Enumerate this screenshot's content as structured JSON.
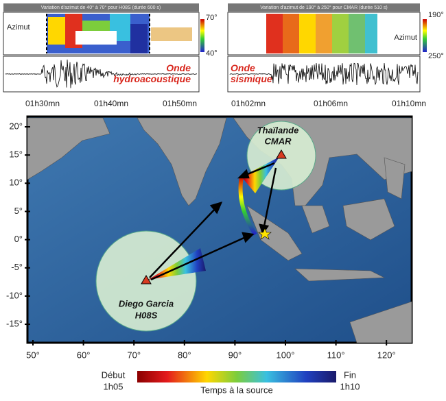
{
  "left_panel": {
    "header": "Variation d'azimut de 40° à 70° pour H08S (durée 600 s)",
    "axis_label": "Azimut",
    "scale_top": "70°",
    "scale_bottom": "40°",
    "wave": "Onde hydroacoustique",
    "times": [
      "01h30mn",
      "01h40mn",
      "01h50mn"
    ]
  },
  "right_panel": {
    "header": "Variation d'azimut de 190° à 250° pour CMAR (durée 510 s)",
    "axis_label": "Azimut",
    "scale_top": "190°",
    "scale_bottom": "250°",
    "wave": "Onde sismique",
    "times": [
      "01h02mn",
      "01h06mn",
      "01h10mn"
    ]
  },
  "map": {
    "lat_ticks": [
      {
        "value": 20,
        "label": "20°"
      },
      {
        "value": 15,
        "label": "15°"
      },
      {
        "value": 10,
        "label": "10°"
      },
      {
        "value": 5,
        "label": "5°"
      },
      {
        "value": 0,
        "label": "0°"
      },
      {
        "value": -5,
        "label": "-5°"
      },
      {
        "value": -10,
        "label": "-10°"
      },
      {
        "value": -15,
        "label": "-15°"
      }
    ],
    "lon_ticks": [
      {
        "value": 50,
        "label": "50°"
      },
      {
        "value": 60,
        "label": "60°"
      },
      {
        "value": 70,
        "label": "70°"
      },
      {
        "value": 80,
        "label": "80°"
      },
      {
        "value": 90,
        "label": "90°"
      },
      {
        "value": 100,
        "label": "100°"
      },
      {
        "value": 110,
        "label": "110°"
      },
      {
        "value": 120,
        "label": "120°"
      }
    ],
    "stations": [
      {
        "name": "Thaïlande",
        "code": "CMAR"
      },
      {
        "name": "Diego Garcia",
        "code": "H08S"
      }
    ]
  },
  "colorbar": {
    "start": "Début",
    "start_time": "1h05",
    "title": "Temps à la source",
    "end": "Fin",
    "end_time": "1h10"
  }
}
